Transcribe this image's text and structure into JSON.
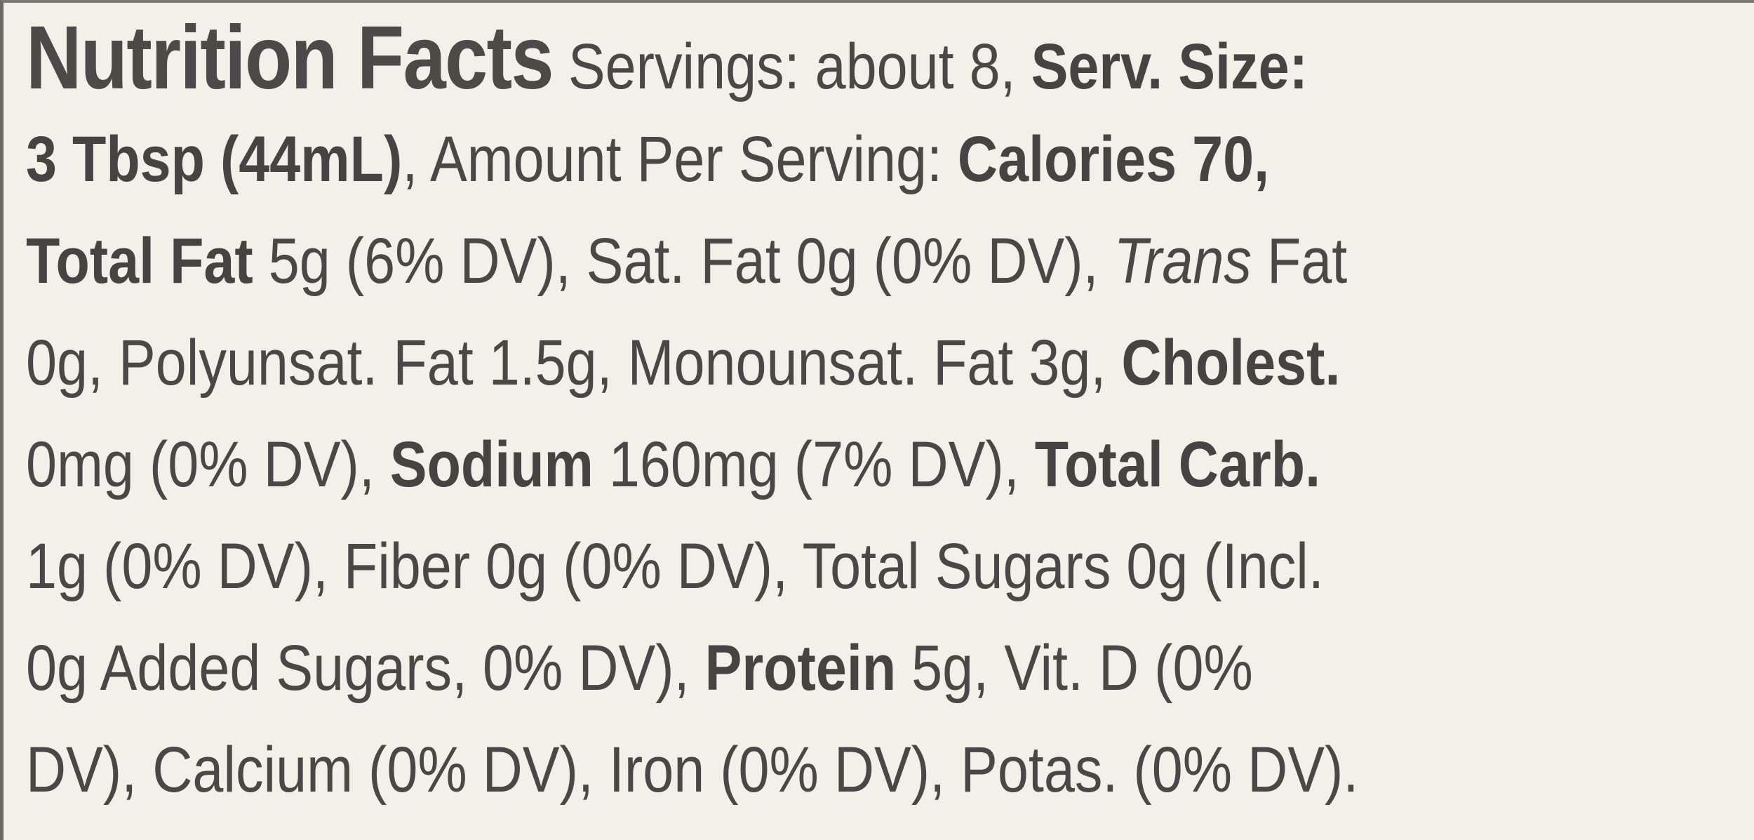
{
  "panel": {
    "title": "Nutrition Facts",
    "lines": [
      [
        {
          "t": " Servings: about 8, ",
          "s": ""
        },
        {
          "t": "Serv. Size:",
          "s": "b"
        }
      ],
      [
        {
          "t": "3 Tbsp (44mL)",
          "s": "b"
        },
        {
          "t": ", Amount Per Serving: ",
          "s": ""
        },
        {
          "t": "Calories 70,",
          "s": "b"
        }
      ],
      [
        {
          "t": "Total Fat",
          "s": "b"
        },
        {
          "t": " 5g (6% DV), Sat. Fat 0g (0% DV), ",
          "s": ""
        },
        {
          "t": "Trans",
          "s": "i"
        },
        {
          "t": " Fat",
          "s": ""
        }
      ],
      [
        {
          "t": "0g, Polyunsat. Fat 1.5g, Monounsat. Fat 3g, ",
          "s": ""
        },
        {
          "t": "Cholest.",
          "s": "b"
        }
      ],
      [
        {
          "t": "0mg (0% DV), ",
          "s": ""
        },
        {
          "t": "Sodium",
          "s": "b"
        },
        {
          "t": " 160mg (7% DV), ",
          "s": ""
        },
        {
          "t": "Total Carb.",
          "s": "b"
        }
      ],
      [
        {
          "t": "1g (0% DV), Fiber 0g (0% DV), Total Sugars 0g (Incl.",
          "s": ""
        }
      ],
      [
        {
          "t": "0g Added Sugars, 0% DV), ",
          "s": ""
        },
        {
          "t": "Protein",
          "s": "b"
        },
        {
          "t": " 5g, Vit. D (0%",
          "s": ""
        }
      ],
      [
        {
          "t": "DV), Calcium (0% DV), Iron (0% DV), Potas. (0% DV).",
          "s": ""
        }
      ]
    ]
  }
}
